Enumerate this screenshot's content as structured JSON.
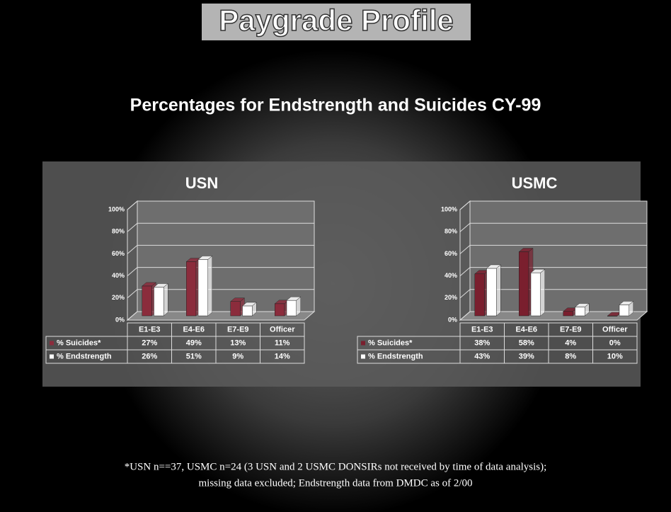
{
  "header": {
    "title": "Paygrade Profile",
    "subtitle": "Percentages for Endstrength and Suicides CY-99"
  },
  "footnote": [
    "*USN n==37, USMC n=24 (3 USN and 2 USMC DONSIRs not received by time of data analysis);",
    "missing data excluded; Endstrength data from DMDC as of 2/00"
  ],
  "chart_data": [
    {
      "type": "bar",
      "title": "USN",
      "categories": [
        "E1-E3",
        "E4-E6",
        "E7-E9",
        "Officer"
      ],
      "series": [
        {
          "name": "% Suicides*",
          "color": "#8b2c3c",
          "values": [
            27,
            49,
            13,
            11
          ],
          "value_labels": [
            "27%",
            "49%",
            "13%",
            "11%"
          ]
        },
        {
          "name": "% Endstrength",
          "color": "#ffffff",
          "values": [
            26,
            51,
            9,
            14
          ],
          "value_labels": [
            "26%",
            "51%",
            "9%",
            "14%"
          ]
        }
      ],
      "ylim": [
        0,
        100
      ],
      "yticks": [
        {
          "value": 0,
          "label": "0%"
        },
        {
          "value": 20,
          "label": "20%"
        },
        {
          "value": 40,
          "label": "40%"
        },
        {
          "value": 60,
          "label": "60%"
        },
        {
          "value": 80,
          "label": "80%"
        },
        {
          "value": 100,
          "label": "100%"
        }
      ],
      "grid": true
    },
    {
      "type": "bar",
      "title": "USMC",
      "categories": [
        "E1-E3",
        "E4-E6",
        "E7-E9",
        "Officer"
      ],
      "series": [
        {
          "name": "% Suicides*",
          "color": "#7a1f2e",
          "values": [
            38,
            58,
            4,
            0
          ],
          "value_labels": [
            "38%",
            "58%",
            "4%",
            "0%"
          ]
        },
        {
          "name": "% Endstrength",
          "color": "#ffffff",
          "values": [
            43,
            39,
            8,
            10
          ],
          "value_labels": [
            "43%",
            "39%",
            "8%",
            "10%"
          ]
        }
      ],
      "ylim": [
        0,
        100
      ],
      "yticks": [
        {
          "value": 0,
          "label": "0%"
        },
        {
          "value": 20,
          "label": "20%"
        },
        {
          "value": 40,
          "label": "40%"
        },
        {
          "value": 60,
          "label": "60%"
        },
        {
          "value": 80,
          "label": "80%"
        },
        {
          "value": 100,
          "label": "100%"
        }
      ],
      "grid": true
    }
  ]
}
